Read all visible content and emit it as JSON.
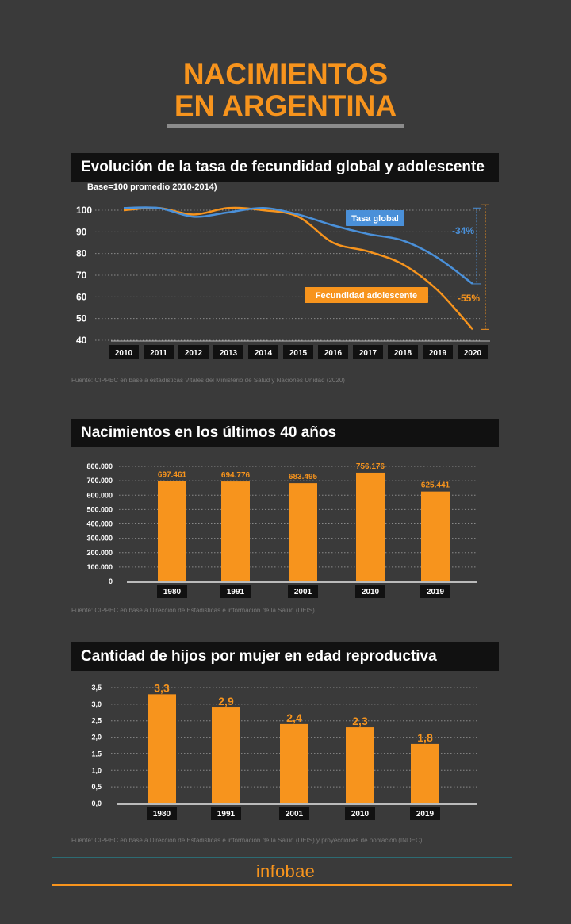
{
  "title": {
    "line1": "NACIMIENTOS",
    "line2": "EN ARGENTINA"
  },
  "colors": {
    "orange": "#f7941d",
    "blue": "#4a90d9",
    "background": "#3a3a3a",
    "header": "#111111"
  },
  "sections": {
    "fertility": {
      "header": "Evolución de la tasa de fecundidad global y adolescente",
      "subtitle": "Base=100 promedio 2010-2014)",
      "source": "Fuente: CIPPEC en base a estadísticas Vitales del Ministerio de Salud y Naciones Unidad (2020)"
    },
    "births": {
      "header": "Nacimientos en los últimos 40 años",
      "source": "Fuente: CIPPEC en base a Direccion de Estadisticas e información de la Salud (DEIS)"
    },
    "children": {
      "header": "Cantidad de hijos por mujer en edad reproductiva",
      "source": "Fuente: CIPPEC en base a Direccion de Estadisticas e información de la Salud (DEIS) y proyecciones de población (INDEC)"
    }
  },
  "brand": "infobae",
  "chart_data": [
    {
      "type": "line",
      "title": "Evolución de la tasa de fecundidad global y adolescente",
      "subtitle": "Base=100 promedio 2010-2014)",
      "x": [
        "2010",
        "2011",
        "2012",
        "2013",
        "2014",
        "2015",
        "2016",
        "2017",
        "2018",
        "2019",
        "2020"
      ],
      "yticks": [
        "100",
        "90",
        "80",
        "70",
        "60",
        "50",
        "40"
      ],
      "ylim": [
        40,
        100
      ],
      "series": [
        {
          "name": "Tasa global",
          "color": "#4a90d9",
          "values": [
            101,
            101,
            97,
            99,
            101,
            98,
            93,
            89,
            86,
            78,
            66
          ]
        },
        {
          "name": "Fecundidad adolescente",
          "color": "#f7941d",
          "values": [
            100,
            101,
            98,
            101,
            100,
            97,
            85,
            81,
            75,
            63,
            45
          ]
        }
      ],
      "annotations": [
        {
          "text": "-34%",
          "series": "Tasa global",
          "color": "#4a90d9"
        },
        {
          "text": "-55%",
          "series": "Fecundidad adolescente",
          "color": "#f7941d"
        }
      ]
    },
    {
      "type": "bar",
      "title": "Nacimientos en los últimos 40 años",
      "categories": [
        "1980",
        "1991",
        "2001",
        "2010",
        "2019"
      ],
      "values": [
        697461,
        694776,
        683495,
        756176,
        625441
      ],
      "labels": [
        "697.461",
        "694.776",
        "683.495",
        "756.176",
        "625.441"
      ],
      "yticks": [
        "800.000",
        "700.000",
        "600.000",
        "500.000",
        "400.000",
        "300.000",
        "200.000",
        "100.000",
        "0"
      ],
      "ylim": [
        0,
        800000
      ]
    },
    {
      "type": "bar",
      "title": "Cantidad de hijos por mujer en edad reproductiva",
      "categories": [
        "1980",
        "1991",
        "2001",
        "2010",
        "2019"
      ],
      "values": [
        3.3,
        2.9,
        2.4,
        2.3,
        1.8
      ],
      "labels": [
        "3,3",
        "2,9",
        "2,4",
        "2,3",
        "1,8"
      ],
      "yticks": [
        "3,5",
        "3,0",
        "2,5",
        "2,0",
        "1,5",
        "1,0",
        "0,5",
        "0,0"
      ],
      "ylim": [
        0,
        3.5
      ]
    }
  ]
}
